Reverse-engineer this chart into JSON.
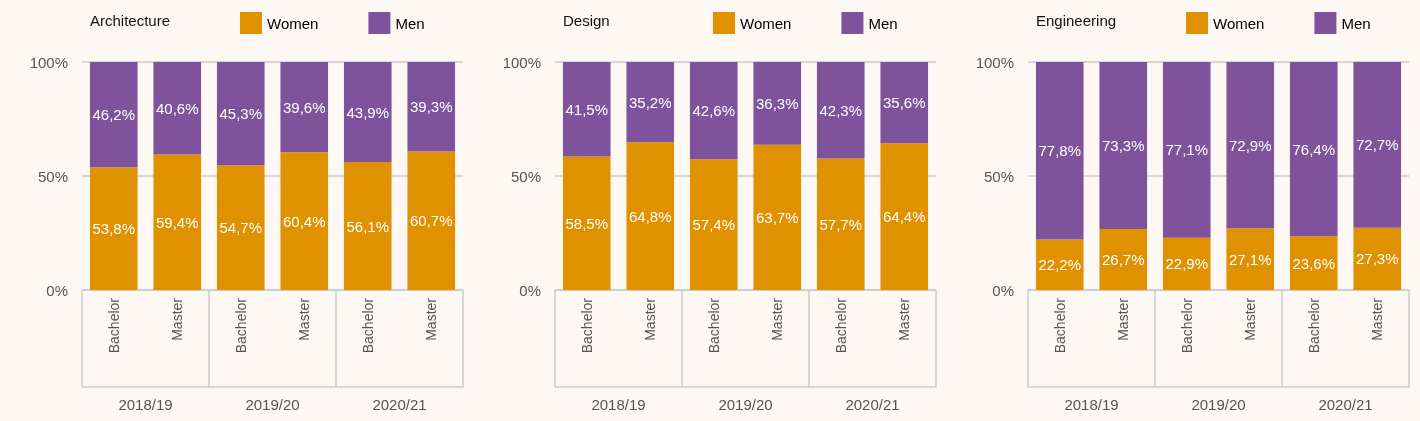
{
  "chart_data": [
    {
      "type": "bar",
      "title": "Architecture",
      "stacked": true,
      "categories": [
        "Bachelor",
        "Master",
        "Bachelor",
        "Master",
        "Bachelor",
        "Master"
      ],
      "annotations": [
        "2018/19",
        "2019/20",
        "2020/21"
      ],
      "series": [
        {
          "name": "Women",
          "color": "#e09100",
          "values": [
            53.8,
            59.4,
            54.7,
            60.4,
            56.1,
            60.7
          ],
          "value_labels": [
            "53,8%",
            "59,4%",
            "54,7%",
            "60,4%",
            "56,1%",
            "60,7%"
          ]
        },
        {
          "name": "Men",
          "color": "#7e539c",
          "values": [
            46.2,
            40.6,
            45.3,
            39.6,
            43.9,
            39.3
          ],
          "value_labels": [
            "46,2%",
            "40,6%",
            "45,3%",
            "39,6%",
            "43,9%",
            "39,3%"
          ]
        }
      ],
      "ylim": [
        0,
        100
      ],
      "yticks": [
        {
          "value": 0,
          "label": "0%"
        },
        {
          "value": 50,
          "label": "50%"
        },
        {
          "value": 100,
          "label": "100%"
        }
      ],
      "grid": "y",
      "legend": "top"
    },
    {
      "type": "bar",
      "title": "Design",
      "stacked": true,
      "categories": [
        "Bachelor",
        "Master",
        "Bachelor",
        "Master",
        "Bachelor",
        "Master"
      ],
      "annotations": [
        "2018/19",
        "2019/20",
        "2020/21"
      ],
      "series": [
        {
          "name": "Women",
          "color": "#e09100",
          "values": [
            58.5,
            64.8,
            57.4,
            63.7,
            57.7,
            64.4
          ],
          "value_labels": [
            "58,5%",
            "64,8%",
            "57,4%",
            "63,7%",
            "57,7%",
            "64,4%"
          ]
        },
        {
          "name": "Men",
          "color": "#7e539c",
          "values": [
            41.5,
            35.2,
            42.6,
            36.3,
            42.3,
            35.6
          ],
          "value_labels": [
            "41,5%",
            "35,2%",
            "42,6%",
            "36,3%",
            "42,3%",
            "35,6%"
          ]
        }
      ],
      "ylim": [
        0,
        100
      ],
      "yticks": [
        {
          "value": 0,
          "label": "0%"
        },
        {
          "value": 50,
          "label": "50%"
        },
        {
          "value": 100,
          "label": "100%"
        }
      ],
      "grid": "y",
      "legend": "top"
    },
    {
      "type": "bar",
      "title": "Engineering",
      "stacked": true,
      "categories": [
        "Bachelor",
        "Master",
        "Bachelor",
        "Master",
        "Bachelor",
        "Master"
      ],
      "annotations": [
        "2018/19",
        "2019/20",
        "2020/21"
      ],
      "series": [
        {
          "name": "Women",
          "color": "#e09100",
          "values": [
            22.2,
            26.7,
            22.9,
            27.1,
            23.6,
            27.3
          ],
          "value_labels": [
            "22,2%",
            "26,7%",
            "22,9%",
            "27,1%",
            "23,6%",
            "27,3%"
          ]
        },
        {
          "name": "Men",
          "color": "#7e539c",
          "values": [
            77.8,
            73.3,
            77.1,
            72.9,
            76.4,
            72.7
          ],
          "value_labels": [
            "77,8%",
            "73,3%",
            "77,1%",
            "72,9%",
            "76,4%",
            "72,7%"
          ]
        }
      ],
      "ylim": [
        0,
        100
      ],
      "yticks": [
        {
          "value": 0,
          "label": "0%"
        },
        {
          "value": 50,
          "label": "50%"
        },
        {
          "value": 100,
          "label": "100%"
        }
      ],
      "grid": "y",
      "legend": "top"
    }
  ]
}
